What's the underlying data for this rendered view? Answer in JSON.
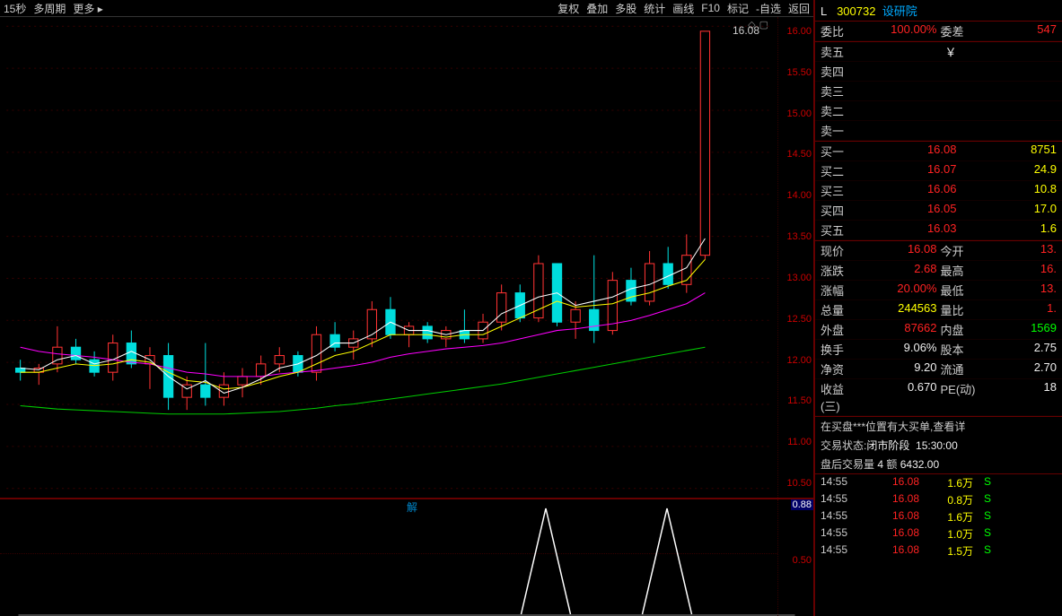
{
  "toolbar": {
    "items": [
      "15秒",
      "多周期",
      "更多 ▸"
    ],
    "right_items": [
      "复权",
      "叠加",
      "多股",
      "统计",
      "画线",
      "F10",
      "标记",
      "-自选",
      "返回"
    ]
  },
  "stock": {
    "code": "300732",
    "name": "设研院",
    "prefix": "L"
  },
  "ratio": {
    "wb_label": "委比",
    "wb": "100.00%",
    "wc_label": "委差",
    "wc": "547"
  },
  "asks": [
    {
      "l": "卖五",
      "p": "￥",
      "q": ""
    },
    {
      "l": "卖四",
      "p": "",
      "q": ""
    },
    {
      "l": "卖三",
      "p": "",
      "q": ""
    },
    {
      "l": "卖二",
      "p": "",
      "q": ""
    },
    {
      "l": "卖一",
      "p": "",
      "q": ""
    }
  ],
  "bids": [
    {
      "l": "买一",
      "p": "16.08",
      "q": "8751"
    },
    {
      "l": "买二",
      "p": "16.07",
      "q": "24.9"
    },
    {
      "l": "买三",
      "p": "16.06",
      "q": "10.8"
    },
    {
      "l": "买四",
      "p": "16.05",
      "q": "17.0"
    },
    {
      "l": "买五",
      "p": "16.03",
      "q": "1.6"
    }
  ],
  "stats": [
    [
      "现价",
      "16.08",
      "red",
      "今开",
      "13.",
      "red"
    ],
    [
      "涨跌",
      "2.68",
      "red",
      "最高",
      "16.",
      "red"
    ],
    [
      "涨幅",
      "20.00%",
      "red",
      "最低",
      "13.",
      "red"
    ],
    [
      "总量",
      "244563",
      "yel",
      "量比",
      "1.",
      "red"
    ],
    [
      "外盘",
      "87662",
      "red",
      "内盘",
      "1569",
      "grn"
    ],
    [
      "换手",
      "9.06%",
      "wht",
      "股本",
      "2.75",
      "wht"
    ],
    [
      "净资",
      "9.20",
      "wht",
      "流通",
      "2.70",
      "wht"
    ],
    [
      "收益(三)",
      "0.670",
      "wht",
      "PE(动)",
      "18",
      "wht"
    ]
  ],
  "info1": "在买盘***位置有大买单,查看详",
  "info2": {
    "l": "交易状态:",
    "v": "闭市阶段",
    "t": "15:30:00"
  },
  "info3": {
    "l": "盘后交易量",
    "v": "4",
    "a": "额",
    "av": "6432.00"
  },
  "trades": [
    {
      "t": "14:55",
      "p": "16.08",
      "q": "1.6万",
      "d": "S"
    },
    {
      "t": "14:55",
      "p": "16.08",
      "q": "0.8万",
      "d": "S"
    },
    {
      "t": "14:55",
      "p": "16.08",
      "q": "1.6万",
      "d": "S"
    },
    {
      "t": "14:55",
      "p": "16.08",
      "q": "1.0万",
      "d": "S"
    },
    {
      "t": "14:55",
      "p": "16.08",
      "q": "1.5万",
      "d": "S"
    }
  ],
  "chart": {
    "ymin": 10.5,
    "ymax": 16.25,
    "yticks": [
      "16.00",
      "15.50",
      "15.00",
      "14.50",
      "14.00",
      "13.50",
      "13.00",
      "12.50",
      "12.00",
      "11.50",
      "11.00",
      "10.50"
    ],
    "peak_label": "16.08",
    "colors": {
      "up": "#f33",
      "down": "#0dd",
      "ma1": "#fff",
      "ma2": "#ff0",
      "ma3": "#f0f",
      "ma4": "#0c0",
      "grid": "#300",
      "text": "#c00"
    },
    "candles": [
      {
        "x": 15,
        "o": 12.05,
        "h": 12.15,
        "l": 11.9,
        "c": 12.0
      },
      {
        "x": 35,
        "o": 12.0,
        "h": 12.1,
        "l": 11.85,
        "c": 12.05
      },
      {
        "x": 55,
        "o": 12.1,
        "h": 12.55,
        "l": 12.0,
        "c": 12.3
      },
      {
        "x": 75,
        "o": 12.3,
        "h": 12.4,
        "l": 12.1,
        "c": 12.15
      },
      {
        "x": 95,
        "o": 12.15,
        "h": 12.25,
        "l": 11.95,
        "c": 12.0
      },
      {
        "x": 115,
        "o": 12.0,
        "h": 12.45,
        "l": 11.9,
        "c": 12.35
      },
      {
        "x": 135,
        "o": 12.35,
        "h": 12.5,
        "l": 12.05,
        "c": 12.1
      },
      {
        "x": 155,
        "o": 12.1,
        "h": 12.3,
        "l": 11.8,
        "c": 12.2
      },
      {
        "x": 175,
        "o": 12.2,
        "h": 12.35,
        "l": 11.55,
        "c": 11.7
      },
      {
        "x": 195,
        "o": 11.7,
        "h": 11.95,
        "l": 11.55,
        "c": 11.85
      },
      {
        "x": 215,
        "o": 11.85,
        "h": 12.35,
        "l": 11.6,
        "c": 11.7
      },
      {
        "x": 235,
        "o": 11.7,
        "h": 12.0,
        "l": 11.6,
        "c": 11.85
      },
      {
        "x": 255,
        "o": 11.85,
        "h": 12.05,
        "l": 11.7,
        "c": 11.95
      },
      {
        "x": 275,
        "o": 11.95,
        "h": 12.2,
        "l": 11.85,
        "c": 12.1
      },
      {
        "x": 295,
        "o": 12.1,
        "h": 12.3,
        "l": 12.0,
        "c": 12.2
      },
      {
        "x": 315,
        "o": 12.2,
        "h": 12.25,
        "l": 11.95,
        "c": 12.0
      },
      {
        "x": 335,
        "o": 12.0,
        "h": 12.55,
        "l": 11.9,
        "c": 12.45
      },
      {
        "x": 355,
        "o": 12.45,
        "h": 12.6,
        "l": 12.25,
        "c": 12.3
      },
      {
        "x": 375,
        "o": 12.3,
        "h": 12.5,
        "l": 12.15,
        "c": 12.4
      },
      {
        "x": 395,
        "o": 12.4,
        "h": 12.85,
        "l": 12.3,
        "c": 12.75
      },
      {
        "x": 415,
        "o": 12.75,
        "h": 12.9,
        "l": 12.4,
        "c": 12.45
      },
      {
        "x": 435,
        "o": 12.45,
        "h": 12.6,
        "l": 12.3,
        "c": 12.55
      },
      {
        "x": 455,
        "o": 12.55,
        "h": 12.6,
        "l": 12.35,
        "c": 12.4
      },
      {
        "x": 475,
        "o": 12.4,
        "h": 12.55,
        "l": 12.3,
        "c": 12.5
      },
      {
        "x": 495,
        "o": 12.5,
        "h": 12.75,
        "l": 12.35,
        "c": 12.4
      },
      {
        "x": 515,
        "o": 12.4,
        "h": 12.7,
        "l": 12.35,
        "c": 12.6
      },
      {
        "x": 535,
        "o": 12.6,
        "h": 13.05,
        "l": 12.5,
        "c": 12.95
      },
      {
        "x": 555,
        "o": 12.95,
        "h": 13.05,
        "l": 12.6,
        "c": 12.65
      },
      {
        "x": 575,
        "o": 12.65,
        "h": 13.4,
        "l": 12.6,
        "c": 13.3
      },
      {
        "x": 595,
        "o": 13.3,
        "h": 13.3,
        "l": 12.55,
        "c": 12.6
      },
      {
        "x": 615,
        "o": 12.6,
        "h": 12.85,
        "l": 12.4,
        "c": 12.75
      },
      {
        "x": 635,
        "o": 12.75,
        "h": 13.4,
        "l": 12.35,
        "c": 12.5
      },
      {
        "x": 655,
        "o": 12.5,
        "h": 13.2,
        "l": 12.45,
        "c": 13.1
      },
      {
        "x": 675,
        "o": 13.1,
        "h": 13.25,
        "l": 12.8,
        "c": 12.85
      },
      {
        "x": 695,
        "o": 12.85,
        "h": 13.45,
        "l": 12.8,
        "c": 13.3
      },
      {
        "x": 715,
        "o": 13.3,
        "h": 13.5,
        "l": 13.0,
        "c": 13.05
      },
      {
        "x": 735,
        "o": 13.05,
        "h": 13.65,
        "l": 12.95,
        "c": 13.4
      },
      {
        "x": 755,
        "o": 13.4,
        "h": 16.08,
        "l": 13.35,
        "c": 16.08
      }
    ],
    "ma1": [
      12.05,
      12.03,
      12.15,
      12.2,
      12.1,
      12.15,
      12.25,
      12.15,
      11.95,
      11.8,
      11.9,
      11.75,
      11.82,
      11.92,
      12.05,
      12.1,
      12.2,
      12.35,
      12.35,
      12.45,
      12.6,
      12.5,
      12.5,
      12.45,
      12.5,
      12.5,
      12.7,
      12.8,
      12.9,
      12.95,
      12.8,
      12.85,
      12.9,
      13.0,
      13.05,
      13.15,
      13.25,
      13.6
    ],
    "ma2": [
      12.0,
      12.0,
      12.05,
      12.1,
      12.08,
      12.1,
      12.15,
      12.12,
      12.0,
      11.9,
      11.88,
      11.8,
      11.82,
      11.88,
      11.95,
      12.0,
      12.1,
      12.2,
      12.25,
      12.35,
      12.45,
      12.45,
      12.45,
      12.42,
      12.45,
      12.45,
      12.55,
      12.65,
      12.75,
      12.85,
      12.78,
      12.8,
      12.82,
      12.9,
      12.95,
      13.03,
      13.1,
      13.35
    ],
    "ma3": [
      12.3,
      12.25,
      12.22,
      12.2,
      12.18,
      12.15,
      12.12,
      12.1,
      12.05,
      12.0,
      11.98,
      11.95,
      11.95,
      11.95,
      11.98,
      12.0,
      12.02,
      12.05,
      12.08,
      12.12,
      12.18,
      12.22,
      12.25,
      12.28,
      12.3,
      12.32,
      12.35,
      12.4,
      12.45,
      12.5,
      12.52,
      12.55,
      12.58,
      12.62,
      12.68,
      12.75,
      12.82,
      12.95
    ],
    "ma4": [
      11.6,
      11.58,
      11.56,
      11.55,
      11.54,
      11.53,
      11.52,
      11.51,
      11.5,
      11.5,
      11.5,
      11.5,
      11.51,
      11.52,
      11.53,
      11.55,
      11.57,
      11.6,
      11.62,
      11.65,
      11.68,
      11.71,
      11.74,
      11.77,
      11.8,
      11.83,
      11.86,
      11.9,
      11.94,
      11.98,
      12.02,
      12.06,
      12.1,
      12.14,
      12.18,
      12.22,
      12.26,
      12.3
    ]
  },
  "subchart": {
    "curr": "0.88",
    "ticks": [
      "0.50"
    ],
    "jie": "解",
    "peaks": [
      {
        "x": 560,
        "w": 55
      },
      {
        "x": 695,
        "w": 55
      }
    ]
  }
}
